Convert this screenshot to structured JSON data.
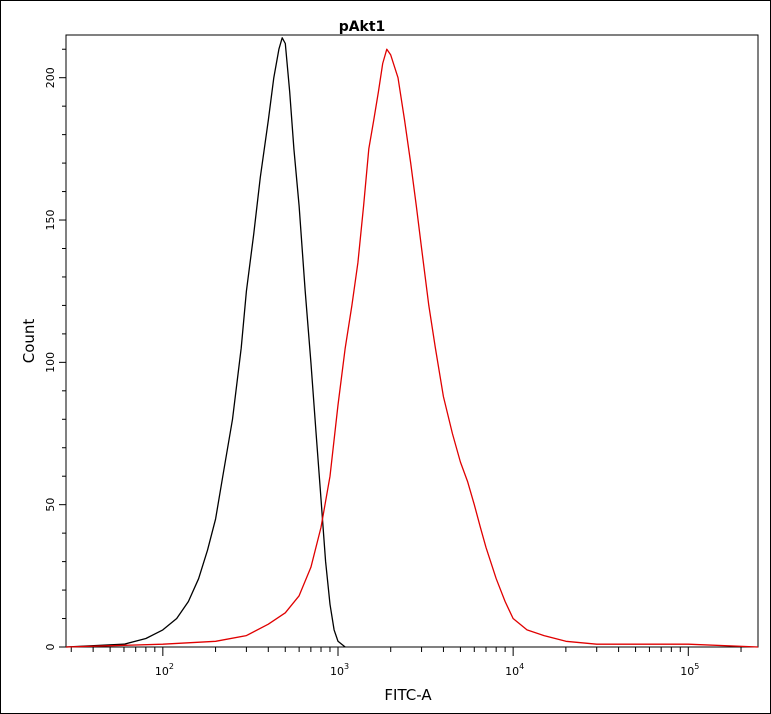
{
  "chart_data": {
    "type": "line",
    "title": "pAkt1",
    "xlabel": "FITC-A",
    "ylabel": "Count",
    "x_scale": "log",
    "xlim": [
      28,
      250000
    ],
    "ylim": [
      0,
      215
    ],
    "x_ticks": [
      {
        "value": 100,
        "base": "10",
        "exp": "2"
      },
      {
        "value": 1000,
        "base": "10",
        "exp": "3"
      },
      {
        "value": 10000,
        "base": "10",
        "exp": "4"
      },
      {
        "value": 100000,
        "base": "10",
        "exp": "5"
      }
    ],
    "y_ticks": [
      "0",
      "50",
      "100",
      "150",
      "200"
    ],
    "grid": false,
    "legend": "none",
    "series": [
      {
        "color": "#000000",
        "x": [
          28,
          60,
          80,
          100,
          120,
          140,
          160,
          180,
          200,
          220,
          250,
          280,
          300,
          330,
          360,
          400,
          430,
          460,
          480,
          500,
          530,
          560,
          600,
          650,
          700,
          750,
          800,
          850,
          900,
          950,
          1000,
          1050,
          1100
        ],
        "y": [
          0,
          1,
          3,
          6,
          10,
          16,
          24,
          34,
          45,
          60,
          80,
          105,
          125,
          145,
          165,
          185,
          200,
          210,
          214,
          212,
          195,
          175,
          155,
          125,
          100,
          75,
          52,
          30,
          15,
          6,
          2,
          1,
          0
        ]
      },
      {
        "color": "#e00000",
        "x": [
          28,
          100,
          200,
          300,
          400,
          500,
          600,
          700,
          800,
          900,
          1000,
          1100,
          1200,
          1300,
          1400,
          1500,
          1600,
          1700,
          1800,
          1900,
          2000,
          2200,
          2400,
          2600,
          2800,
          3000,
          3300,
          3600,
          4000,
          4500,
          5000,
          5500,
          6000,
          6500,
          7000,
          8000,
          9000,
          10000,
          12000,
          15000,
          20000,
          30000,
          50000,
          100000,
          250000
        ],
        "y": [
          0,
          1,
          2,
          4,
          8,
          12,
          18,
          28,
          42,
          60,
          85,
          105,
          120,
          135,
          155,
          175,
          185,
          195,
          205,
          210,
          208,
          200,
          185,
          170,
          155,
          140,
          120,
          105,
          88,
          75,
          65,
          58,
          50,
          42,
          35,
          24,
          16,
          10,
          6,
          4,
          2,
          1,
          1,
          1,
          0
        ]
      }
    ]
  }
}
